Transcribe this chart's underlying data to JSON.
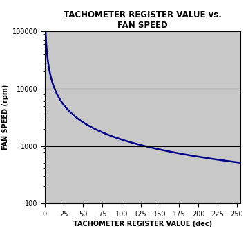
{
  "title_line1": "TACHOMETER REGISTER VALUE vs.",
  "title_line2": "FAN SPEED",
  "xlabel": "TACHOMETER REGISTER VALUE (dec)",
  "ylabel": "FAN SPEED (rpm)",
  "x_min": 0,
  "x_max": 255,
  "x_ticks": [
    0,
    25,
    50,
    75,
    100,
    125,
    150,
    175,
    200,
    225,
    250
  ],
  "y_min": 100,
  "y_max": 100000,
  "y_ticks": [
    100,
    1000,
    10000,
    100000
  ],
  "hlines": [
    1000,
    10000
  ],
  "curve_constant": 130000,
  "curve_color": "#00008B",
  "curve_linewidth": 1.8,
  "hline_color": "#000000",
  "hline_linewidth": 0.8,
  "plot_bg_color": "#C8C8C8",
  "title_fontsize": 8.5,
  "axis_label_fontsize": 7,
  "tick_fontsize": 7
}
